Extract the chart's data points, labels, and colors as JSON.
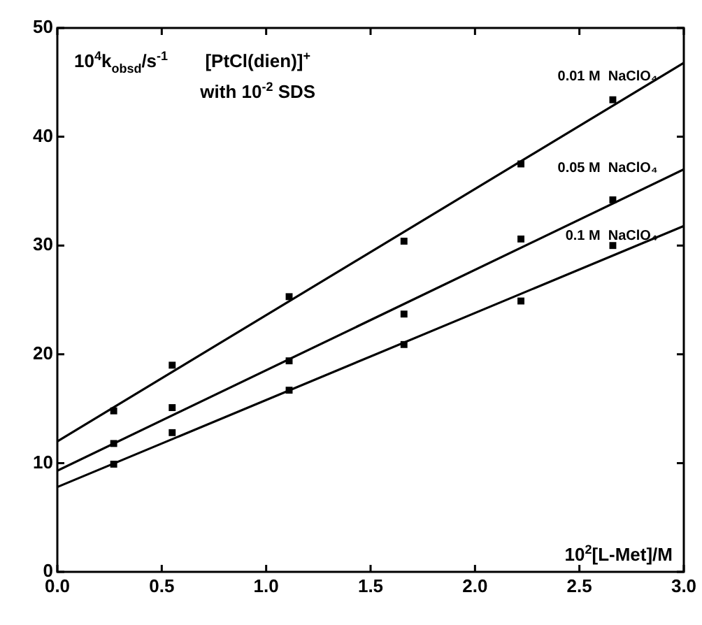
{
  "chart_data": {
    "type": "scatter",
    "title": "[PtCl(dien)]$^{+}$",
    "subtitle": "with 10$^{-2}$ SDS",
    "xlabel": "10$^{2}$[L-Met]/M",
    "ylabel": "10$^{4}$k$_{obsd}$/s$^{-1}$",
    "xlim": [
      0,
      3
    ],
    "xticks": [
      {
        "value": 0,
        "label": "0.0"
      },
      {
        "value": 0.5,
        "label": "0.5"
      },
      {
        "value": 1,
        "label": "1.0"
      },
      {
        "value": 1.5,
        "label": "1.5"
      },
      {
        "value": 2,
        "label": "2.0"
      },
      {
        "value": 2.5,
        "label": "2.5"
      },
      {
        "value": 3,
        "label": "3.0"
      }
    ],
    "ylim": [
      0,
      50
    ],
    "yticks": [
      0,
      10,
      20,
      30,
      40,
      50
    ],
    "marker": "square",
    "series": [
      {
        "name": "0.01 M  NaClO₄",
        "color": "#000000",
        "x": [
          0.27,
          0.55,
          1.11,
          1.66,
          2.22,
          2.66
        ],
        "values": [
          14.8,
          19.0,
          25.3,
          30.4,
          37.5,
          43.4
        ]
      },
      {
        "name": "0.05 M  NaClO₄",
        "color": "#000000",
        "x": [
          0.27,
          0.55,
          1.11,
          1.66,
          2.22,
          2.66
        ],
        "values": [
          11.8,
          15.1,
          19.4,
          23.7,
          30.6,
          34.2
        ]
      },
      {
        "name": "0.1 M  NaClO₄",
        "color": "#000000",
        "x": [
          0.27,
          0.55,
          1.11,
          1.66,
          2.22,
          2.66
        ],
        "values": [
          9.9,
          12.8,
          16.7,
          20.9,
          24.9,
          30.0
        ]
      },
      {
        "type": "line",
        "marker": "none",
        "color": "#000000",
        "x": [
          0,
          3
        ],
        "values": [
          12.0,
          46.8
        ]
      },
      {
        "type": "line",
        "marker": "none",
        "color": "#000000",
        "x": [
          0,
          3
        ],
        "values": [
          9.3,
          37.0
        ]
      },
      {
        "type": "line",
        "marker": "none",
        "color": "#000000",
        "x": [
          0,
          3
        ],
        "values": [
          7.8,
          31.8
        ]
      }
    ]
  }
}
